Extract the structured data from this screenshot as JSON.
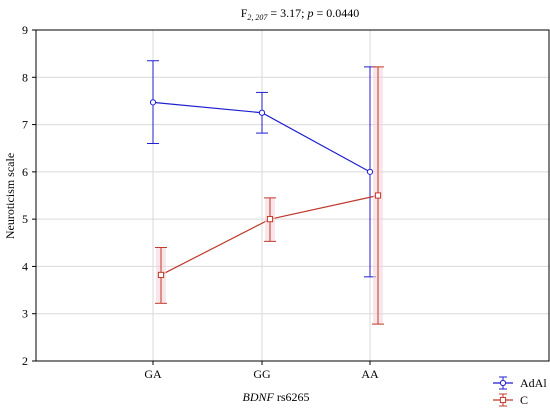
{
  "chart_data": {
    "type": "line",
    "title": {
      "prefix": "F",
      "subscript": "2, 207",
      "middle": " = 3.17; ",
      "p_label": "p",
      "suffix": " = 0.0440"
    },
    "xlabel": {
      "italic": "BDNF",
      "rest": " rs6265"
    },
    "ylabel": "Neuroticism scale",
    "categories": [
      "GA",
      "GG",
      "AA"
    ],
    "ylim": [
      2,
      9
    ],
    "yticks": [
      2,
      3,
      4,
      5,
      6,
      7,
      8,
      9
    ],
    "grid": true,
    "legend_position": "bottom-right",
    "series": [
      {
        "name": "AdAl",
        "color": "#1f1fd1",
        "marker": "circle",
        "values": [
          7.47,
          7.25,
          6.0
        ],
        "lower": [
          6.6,
          6.82,
          3.78
        ],
        "upper": [
          8.35,
          7.68,
          8.22
        ]
      },
      {
        "name": "C",
        "color": "#c0392b",
        "marker": "square",
        "values": [
          3.82,
          5.0,
          5.5
        ],
        "lower": [
          3.22,
          4.53,
          2.78
        ],
        "upper": [
          4.4,
          5.45,
          8.22
        ]
      }
    ]
  }
}
